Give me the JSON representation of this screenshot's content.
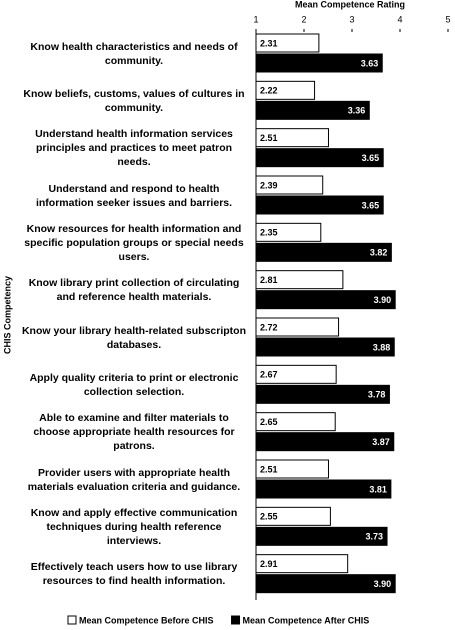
{
  "chart_data": {
    "type": "hbar",
    "x_label": "Mean Competence Rating",
    "y_label": "CHIS Competency",
    "categories": [
      "Know health characteristics and needs of community.",
      "Know beliefs, customs, values of cultures in community.",
      "Understand health information services principles and practices to meet patron needs.",
      "Understand and respond to health information seeker issues and barriers.",
      "Know resources for health information and specific population groups or special needs users.",
      "Know library print collection of circulating and reference health materials.",
      "Know your library health-related subscripton databases.",
      "Apply quality criteria to print or electronic collection selection.",
      "Able to examine and filter materials to choose appropriate health resources for patrons.",
      "Provider users with appropriate health materials evaluation criteria and guidance.",
      "Know and apply effective communication techniques during health reference interviews.",
      "Effectively teach users how to use library resources to find health information."
    ],
    "series": [
      {
        "name": "Mean Competence Before CHIS",
        "color": "#ffffff",
        "values": [
          2.31,
          2.22,
          2.51,
          2.39,
          2.35,
          2.81,
          2.72,
          2.67,
          2.65,
          2.51,
          2.55,
          2.91
        ],
        "value_labels": [
          "2.31",
          "2.22",
          "2.51",
          "2.39",
          "2.35",
          "2.81",
          "2.72",
          "2.67",
          "2.65",
          "2.51",
          "2.55",
          "2.91"
        ]
      },
      {
        "name": "Mean Competence After CHIS",
        "color": "#000000",
        "values": [
          3.63,
          3.36,
          3.65,
          3.65,
          3.82,
          3.9,
          3.88,
          3.78,
          3.87,
          3.81,
          3.73,
          3.9
        ],
        "value_labels": [
          "3.63",
          "3.36",
          "3.65",
          "3.65",
          "3.82",
          "3.90",
          "3.88",
          "3.78",
          "3.87",
          "3.81",
          "3.73",
          "3.90"
        ]
      }
    ],
    "xlim": [
      1,
      5
    ],
    "xticks": [
      1,
      2,
      3,
      4,
      5
    ]
  }
}
